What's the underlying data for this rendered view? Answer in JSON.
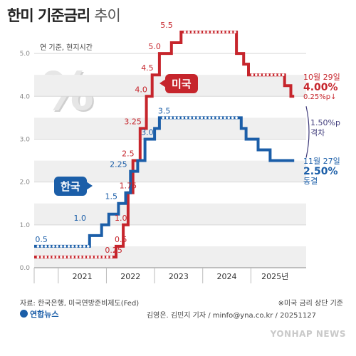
{
  "title": {
    "main": "한미 기준금리",
    "sub": "추이"
  },
  "unit_label": "연 기준, 현지시간",
  "percent_symbol": "%",
  "labels": {
    "us": "미국",
    "kr": "한국"
  },
  "annotations": {
    "us": {
      "date": "10월 29일",
      "rate": "4.00%",
      "range": "0.25%p↓"
    },
    "gap": {
      "value": "1.50%p",
      "label": "격차"
    },
    "kr": {
      "date": "11월 27일",
      "rate": "2.50%",
      "status": "동결"
    }
  },
  "source": "자료: 한국은행, 미국연방준비제도(Fed)",
  "note": "※미국 금리 상단 기준",
  "credit": "김영은. 김민지 기자 / minfo@yna.co.kr / 20251127",
  "logo": "연합뉴스",
  "watermark": "YONHAP NEWS",
  "colors": {
    "us": "#c6252c",
    "kr": "#1b5ea8",
    "gap": "#3e3a7a"
  },
  "chart_data": {
    "type": "line",
    "step": true,
    "x_axis_labels": [
      "2021",
      "2022",
      "2023",
      "2024",
      "2025년"
    ],
    "x_ticks": [
      2021,
      2022,
      2023,
      2024,
      2025
    ],
    "xlim": [
      2020.5,
      2026.0
    ],
    "ylim": [
      0,
      5.5
    ],
    "y_ticks": [
      0,
      1.0,
      2.0,
      3.0,
      4.0,
      5.0
    ],
    "grid": true,
    "series": [
      {
        "name": "미국",
        "color": "#c6252c",
        "points": [
          [
            2020.5,
            0.25
          ],
          [
            2022.2,
            0.25
          ],
          [
            2022.2,
            0.5
          ],
          [
            2022.35,
            0.5
          ],
          [
            2022.35,
            1.0
          ],
          [
            2022.45,
            1.0
          ],
          [
            2022.45,
            1.75
          ],
          [
            2022.55,
            1.75
          ],
          [
            2022.55,
            2.5
          ],
          [
            2022.7,
            2.5
          ],
          [
            2022.7,
            3.25
          ],
          [
            2022.83,
            3.25
          ],
          [
            2022.83,
            4.0
          ],
          [
            2022.95,
            4.0
          ],
          [
            2022.95,
            4.5
          ],
          [
            2023.1,
            4.5
          ],
          [
            2023.1,
            5.0
          ],
          [
            2023.35,
            5.0
          ],
          [
            2023.35,
            5.25
          ],
          [
            2023.55,
            5.25
          ],
          [
            2023.55,
            5.5
          ],
          [
            2024.7,
            5.5
          ],
          [
            2024.7,
            5.0
          ],
          [
            2024.85,
            5.0
          ],
          [
            2024.85,
            4.75
          ],
          [
            2024.95,
            4.75
          ],
          [
            2024.95,
            4.5
          ],
          [
            2025.7,
            4.5
          ],
          [
            2025.7,
            4.25
          ],
          [
            2025.83,
            4.25
          ],
          [
            2025.83,
            4.0
          ],
          [
            2025.9,
            4.0
          ]
        ],
        "value_labels": [
          {
            "x": 2022.15,
            "y": 0.25,
            "text": "0.25"
          },
          {
            "x": 2022.3,
            "y": 0.5,
            "text": "0.5"
          },
          {
            "x": 2022.3,
            "y": 1.0,
            "text": "1.0"
          },
          {
            "x": 2022.45,
            "y": 1.75,
            "text": "1.75"
          },
          {
            "x": 2022.45,
            "y": 2.5,
            "text": "2.5"
          },
          {
            "x": 2022.55,
            "y": 3.25,
            "text": "3.25"
          },
          {
            "x": 2022.72,
            "y": 4.0,
            "text": "4.0"
          },
          {
            "x": 2022.85,
            "y": 4.5,
            "text": "4.5"
          },
          {
            "x": 2023.0,
            "y": 5.0,
            "text": "5.0"
          },
          {
            "x": 2023.25,
            "y": 5.5,
            "text": "5.5"
          }
        ]
      },
      {
        "name": "한국",
        "color": "#1b5ea8",
        "points": [
          [
            2020.5,
            0.5
          ],
          [
            2021.65,
            0.5
          ],
          [
            2021.65,
            0.75
          ],
          [
            2021.9,
            0.75
          ],
          [
            2021.9,
            1.0
          ],
          [
            2022.05,
            1.0
          ],
          [
            2022.05,
            1.25
          ],
          [
            2022.25,
            1.25
          ],
          [
            2022.25,
            1.5
          ],
          [
            2022.4,
            1.5
          ],
          [
            2022.4,
            1.75
          ],
          [
            2022.5,
            1.75
          ],
          [
            2022.5,
            2.25
          ],
          [
            2022.65,
            2.25
          ],
          [
            2022.65,
            2.5
          ],
          [
            2022.8,
            2.5
          ],
          [
            2022.8,
            3.0
          ],
          [
            2023.0,
            3.0
          ],
          [
            2023.0,
            3.25
          ],
          [
            2023.1,
            3.25
          ],
          [
            2023.1,
            3.5
          ],
          [
            2024.8,
            3.5
          ],
          [
            2024.8,
            3.25
          ],
          [
            2024.9,
            3.25
          ],
          [
            2024.9,
            3.0
          ],
          [
            2025.15,
            3.0
          ],
          [
            2025.15,
            2.75
          ],
          [
            2025.4,
            2.75
          ],
          [
            2025.4,
            2.5
          ],
          [
            2025.9,
            2.5
          ]
        ],
        "value_labels": [
          {
            "x": 2020.65,
            "y": 0.5,
            "text": "0.5"
          },
          {
            "x": 2021.45,
            "y": 1.0,
            "text": "1.0"
          },
          {
            "x": 2022.1,
            "y": 1.5,
            "text": "1.5"
          },
          {
            "x": 2022.25,
            "y": 2.25,
            "text": "2.25"
          },
          {
            "x": 2022.85,
            "y": 3.0,
            "text": "3.0"
          },
          {
            "x": 2023.2,
            "y": 3.5,
            "text": "3.5"
          }
        ]
      }
    ]
  }
}
